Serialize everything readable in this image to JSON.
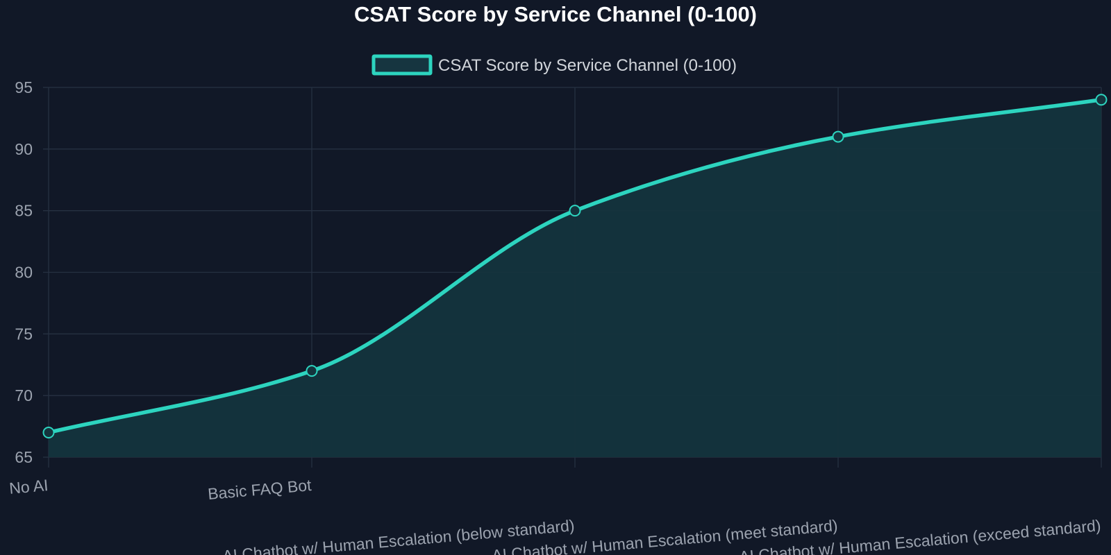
{
  "chart_data": {
    "type": "area",
    "title": "CSAT Score by Service Channel (0-100)",
    "categories": [
      "No AI",
      "Basic FAQ Bot",
      "AI Chatbot w/ Human Escalation (below standard)",
      "AI Chatbot w/ Human Escalation (meet standard)",
      "AI Chatbot w/ Human Escalation (exceed standard)"
    ],
    "series": [
      {
        "name": "CSAT Score by Service Channel (0-100)",
        "values": [
          67,
          72,
          85,
          91,
          94
        ]
      }
    ],
    "ylim": [
      65,
      95
    ],
    "yticks": [
      65,
      70,
      75,
      80,
      85,
      90,
      95
    ],
    "xlabel": "",
    "ylabel": "",
    "grid": true,
    "legend_position": "top-center",
    "curve": "smooth",
    "colors": {
      "background": "#111827",
      "line": "#2dd4bf",
      "fill": "#14343d",
      "grid": "#263142",
      "tick_text": "#9ca3af",
      "title_text": "#ffffff",
      "legend_text": "#d1d5db",
      "legend_box_fill": "#163540"
    }
  }
}
